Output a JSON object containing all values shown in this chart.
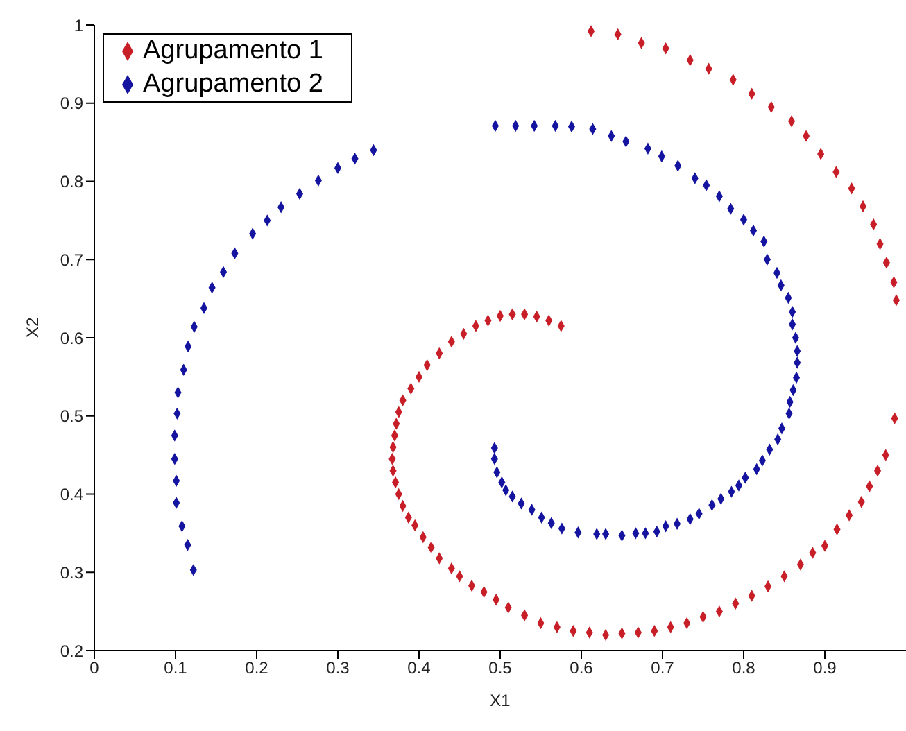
{
  "chart_data": {
    "type": "scatter",
    "xlabel": "X1",
    "ylabel": "X2",
    "xlim": [
      0,
      1
    ],
    "ylim": [
      0.2,
      1
    ],
    "xticks": [
      0,
      0.1,
      0.2,
      0.3,
      0.4,
      0.5,
      0.6,
      0.7,
      0.8,
      0.9
    ],
    "yticks": [
      0.2,
      0.3,
      0.4,
      0.5,
      0.6,
      0.7,
      0.8,
      0.9,
      1
    ],
    "grid": false,
    "legend": "top left",
    "marker": "diamond",
    "series": [
      {
        "name": "Agrupamento 1",
        "color": "#c81e28",
        "x": [
          0.575,
          0.56,
          0.545,
          0.53,
          0.515,
          0.5,
          0.485,
          0.47,
          0.455,
          0.44,
          0.425,
          0.41,
          0.4,
          0.39,
          0.38,
          0.375,
          0.372,
          0.37,
          0.368,
          0.367,
          0.368,
          0.371,
          0.375,
          0.38,
          0.387,
          0.395,
          0.405,
          0.415,
          0.425,
          0.44,
          0.45,
          0.465,
          0.48,
          0.495,
          0.51,
          0.53,
          0.55,
          0.57,
          0.59,
          0.61,
          0.63,
          0.65,
          0.67,
          0.69,
          0.71,
          0.73,
          0.75,
          0.77,
          0.79,
          0.81,
          0.83,
          0.85,
          0.87,
          0.885,
          0.9,
          0.915,
          0.93,
          0.945,
          0.955,
          0.965,
          0.975,
          0.986,
          0.988,
          0.985,
          0.976,
          0.968,
          0.96,
          0.947,
          0.933,
          0.914,
          0.895,
          0.877,
          0.859,
          0.834,
          0.81,
          0.787,
          0.757,
          0.734,
          0.704,
          0.674,
          0.645,
          0.612
        ],
        "values": [
          0.615,
          0.622,
          0.627,
          0.63,
          0.63,
          0.628,
          0.622,
          0.615,
          0.605,
          0.595,
          0.58,
          0.565,
          0.55,
          0.535,
          0.52,
          0.505,
          0.49,
          0.475,
          0.46,
          0.445,
          0.43,
          0.415,
          0.4,
          0.385,
          0.37,
          0.36,
          0.345,
          0.332,
          0.318,
          0.305,
          0.295,
          0.283,
          0.275,
          0.265,
          0.255,
          0.245,
          0.235,
          0.23,
          0.225,
          0.223,
          0.22,
          0.222,
          0.223,
          0.225,
          0.23,
          0.235,
          0.243,
          0.25,
          0.26,
          0.27,
          0.282,
          0.295,
          0.31,
          0.325,
          0.334,
          0.355,
          0.373,
          0.39,
          0.41,
          0.43,
          0.45,
          0.497,
          0.648,
          0.671,
          0.696,
          0.72,
          0.745,
          0.768,
          0.791,
          0.812,
          0.835,
          0.858,
          0.877,
          0.895,
          0.912,
          0.93,
          0.944,
          0.955,
          0.97,
          0.977,
          0.988,
          0.992
        ]
      },
      {
        "name": "Agrupamento 2",
        "color": "#1414a0",
        "x": [
          0.493,
          0.493,
          0.496,
          0.502,
          0.507,
          0.515,
          0.526,
          0.539,
          0.551,
          0.563,
          0.576,
          0.596,
          0.619,
          0.63,
          0.65,
          0.667,
          0.679,
          0.693,
          0.704,
          0.718,
          0.734,
          0.745,
          0.761,
          0.772,
          0.785,
          0.794,
          0.802,
          0.816,
          0.823,
          0.832,
          0.842,
          0.847,
          0.856,
          0.857,
          0.861,
          0.865,
          0.866,
          0.866,
          0.864,
          0.86,
          0.86,
          0.855,
          0.846,
          0.841,
          0.829,
          0.825,
          0.812,
          0.8,
          0.784,
          0.77,
          0.754,
          0.74,
          0.719,
          0.699,
          0.682,
          0.655,
          0.637,
          0.614,
          0.588,
          0.568,
          0.542,
          0.519,
          0.494,
          0.344,
          0.321,
          0.3,
          0.276,
          0.253,
          0.23,
          0.213,
          0.195,
          0.173,
          0.159,
          0.145,
          0.135,
          0.123,
          0.1155,
          0.11,
          0.103,
          0.102,
          0.099,
          0.099,
          0.101,
          0.101,
          0.108,
          0.115,
          0.122
        ],
        "values": [
          0.459,
          0.445,
          0.428,
          0.415,
          0.405,
          0.397,
          0.388,
          0.38,
          0.37,
          0.363,
          0.356,
          0.351,
          0.349,
          0.349,
          0.347,
          0.35,
          0.35,
          0.352,
          0.359,
          0.362,
          0.368,
          0.375,
          0.386,
          0.394,
          0.403,
          0.411,
          0.421,
          0.432,
          0.443,
          0.457,
          0.47,
          0.484,
          0.503,
          0.518,
          0.533,
          0.549,
          0.568,
          0.583,
          0.6,
          0.617,
          0.633,
          0.651,
          0.667,
          0.683,
          0.7,
          0.723,
          0.737,
          0.751,
          0.765,
          0.781,
          0.795,
          0.804,
          0.82,
          0.832,
          0.842,
          0.851,
          0.858,
          0.867,
          0.87,
          0.871,
          0.871,
          0.871,
          0.871,
          0.84,
          0.829,
          0.817,
          0.801,
          0.784,
          0.767,
          0.75,
          0.733,
          0.708,
          0.684,
          0.664,
          0.638,
          0.614,
          0.589,
          0.559,
          0.53,
          0.503,
          0.475,
          0.445,
          0.417,
          0.389,
          0.359,
          0.335,
          0.303
        ]
      }
    ]
  }
}
